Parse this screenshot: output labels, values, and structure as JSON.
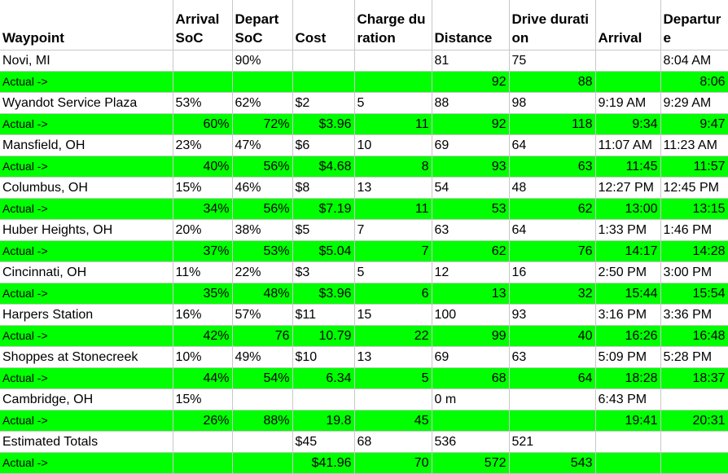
{
  "headers": [
    "Waypoint",
    "Arrival SoC",
    "Depart SoC",
    "Cost",
    "Charge duration",
    "Distance",
    "Drive duration",
    "Arrival",
    "Departure"
  ],
  "rows": [
    {
      "type": "plan",
      "cells": [
        "Novi, MI",
        "",
        "90%",
        "",
        "",
        "81",
        "75",
        "",
        "8:04 AM"
      ]
    },
    {
      "type": "actual",
      "cells": [
        "Actual ->",
        "",
        "",
        "",
        "",
        "92",
        "88",
        "",
        "8:06"
      ]
    },
    {
      "type": "plan",
      "cells": [
        "Wyandot Service Plaza",
        "53%",
        "62%",
        "$2",
        "5",
        "88",
        "98",
        "9:19 AM",
        "9:29 AM"
      ]
    },
    {
      "type": "actual",
      "cells": [
        "Actual ->",
        "60%",
        "72%",
        "$3.96",
        "11",
        "92",
        "118",
        "9:34",
        "9:47"
      ]
    },
    {
      "type": "plan",
      "cells": [
        "Mansfield, OH",
        "23%",
        "47%",
        "$6",
        "10",
        "69",
        "64",
        "11:07 AM",
        "11:23 AM"
      ]
    },
    {
      "type": "actual",
      "cells": [
        "Actual ->",
        "40%",
        "56%",
        "$4.68",
        "8",
        "93",
        "63",
        "11:45",
        "11:57"
      ]
    },
    {
      "type": "plan",
      "cells": [
        "Columbus, OH",
        "15%",
        "46%",
        "$8",
        "13",
        "54",
        "48",
        "12:27 PM",
        "12:45 PM"
      ]
    },
    {
      "type": "actual",
      "cells": [
        "Actual ->",
        "34%",
        "56%",
        "$7.19",
        "11",
        "53",
        "62",
        "13:00",
        "13:15"
      ]
    },
    {
      "type": "plan",
      "cells": [
        "Huber Heights, OH",
        "20%",
        "38%",
        "$5",
        "7",
        "63",
        "64",
        "1:33 PM",
        "1:46 PM"
      ]
    },
    {
      "type": "actual",
      "cells": [
        "Actual ->",
        "37%",
        "53%",
        "$5.04",
        "7",
        "62",
        "76",
        "14:17",
        "14:28"
      ]
    },
    {
      "type": "plan",
      "cells": [
        "Cincinnati, OH",
        "11%",
        "22%",
        "$3",
        "5",
        "12",
        "16",
        "2:50 PM",
        "3:00 PM"
      ]
    },
    {
      "type": "actual",
      "cells": [
        "Actual ->",
        "35%",
        "48%",
        "$3.96",
        "6",
        "13",
        "32",
        "15:44",
        "15:54"
      ]
    },
    {
      "type": "plan",
      "cells": [
        "Harpers Station",
        "16%",
        "57%",
        "$11",
        "15",
        "100",
        "93",
        "3:16 PM",
        "3:36 PM"
      ]
    },
    {
      "type": "actual",
      "cells": [
        "Actual ->",
        "42%",
        "76",
        "10.79",
        "22",
        "99",
        "40",
        "16:26",
        "16:48"
      ]
    },
    {
      "type": "plan",
      "cells": [
        "Shoppes at Stonecreek",
        "10%",
        "49%",
        "$10",
        "13",
        "69",
        "63",
        "5:09 PM",
        "5:28 PM"
      ]
    },
    {
      "type": "actual",
      "cells": [
        "Actual ->",
        "44%",
        "54%",
        "6.34",
        "5",
        "68",
        "64",
        "18:28",
        "18:37"
      ]
    },
    {
      "type": "plan",
      "cells": [
        "Cambridge, OH",
        "15%",
        "",
        "",
        "",
        "0 m",
        "",
        "6:43 PM",
        ""
      ]
    },
    {
      "type": "actual",
      "cells": [
        "Actual ->",
        "26%",
        "88%",
        "19.8",
        "45",
        "",
        "",
        "19:41",
        "20:31"
      ]
    },
    {
      "type": "plan",
      "cells": [
        "Estimated Totals",
        "",
        "",
        "$45",
        "68",
        "536",
        "521",
        "",
        ""
      ]
    },
    {
      "type": "actual",
      "cells": [
        "Actual ->",
        "",
        "",
        "$41.96",
        "70",
        "572",
        "543",
        "",
        ""
      ]
    }
  ],
  "colors": {
    "actual_row": "#00ff00",
    "grid": "#c8c8c8"
  }
}
